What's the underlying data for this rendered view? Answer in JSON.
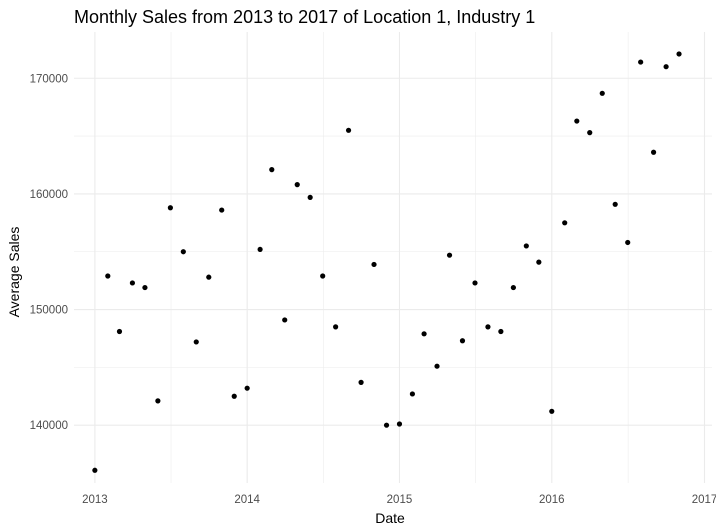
{
  "chart_data": {
    "type": "scatter",
    "title": "Monthly Sales from 2013 to 2017 of Location 1, Industry 1",
    "xlabel": "Date",
    "ylabel": "Average Sales",
    "x_ticks": [
      "2013",
      "2014",
      "2015",
      "2016",
      "2017"
    ],
    "y_ticks": [
      "140000",
      "150000",
      "160000",
      "170000"
    ],
    "xlim": [
      "2012-11-12",
      "2017-01-19"
    ],
    "ylim": [
      135000,
      174000
    ],
    "grid": true,
    "legend": "none",
    "point_color": "#000000",
    "grid_color": "#ebebeb",
    "background_color": "#ffffff",
    "series": [
      {
        "x": [
          "2013-01-01",
          "2013-02-01",
          "2013-03-01",
          "2013-04-01",
          "2013-05-01",
          "2013-06-01",
          "2013-07-01",
          "2013-08-01",
          "2013-09-01",
          "2013-10-01",
          "2013-11-01",
          "2013-12-01",
          "2014-01-01",
          "2014-02-01",
          "2014-03-01",
          "2014-04-01",
          "2014-05-01",
          "2014-06-01",
          "2014-07-01",
          "2014-08-01",
          "2014-09-01",
          "2014-10-01",
          "2014-11-01",
          "2014-12-01",
          "2015-01-01",
          "2015-02-01",
          "2015-03-01",
          "2015-04-01",
          "2015-05-01",
          "2015-06-01",
          "2015-07-01",
          "2015-08-01",
          "2015-09-01",
          "2015-10-01",
          "2015-11-01",
          "2015-12-01",
          "2016-01-01",
          "2016-02-01",
          "2016-03-01",
          "2016-04-01",
          "2016-05-01",
          "2016-06-01",
          "2016-07-01",
          "2016-08-01",
          "2016-09-01",
          "2016-10-01",
          "2016-11-01"
        ],
        "y": [
          136100,
          152900,
          148100,
          152300,
          151900,
          142100,
          158800,
          155000,
          147200,
          152800,
          158600,
          142500,
          143200,
          155200,
          162100,
          149100,
          160800,
          159700,
          152900,
          148500,
          165500,
          143700,
          153900,
          140000,
          140100,
          142700,
          147900,
          145100,
          154700,
          147300,
          152300,
          148500,
          148100,
          151900,
          155500,
          154100,
          141200,
          157500,
          166300,
          165300,
          168700,
          159100,
          155800,
          171400,
          163600,
          171000,
          172100
        ]
      }
    ]
  }
}
